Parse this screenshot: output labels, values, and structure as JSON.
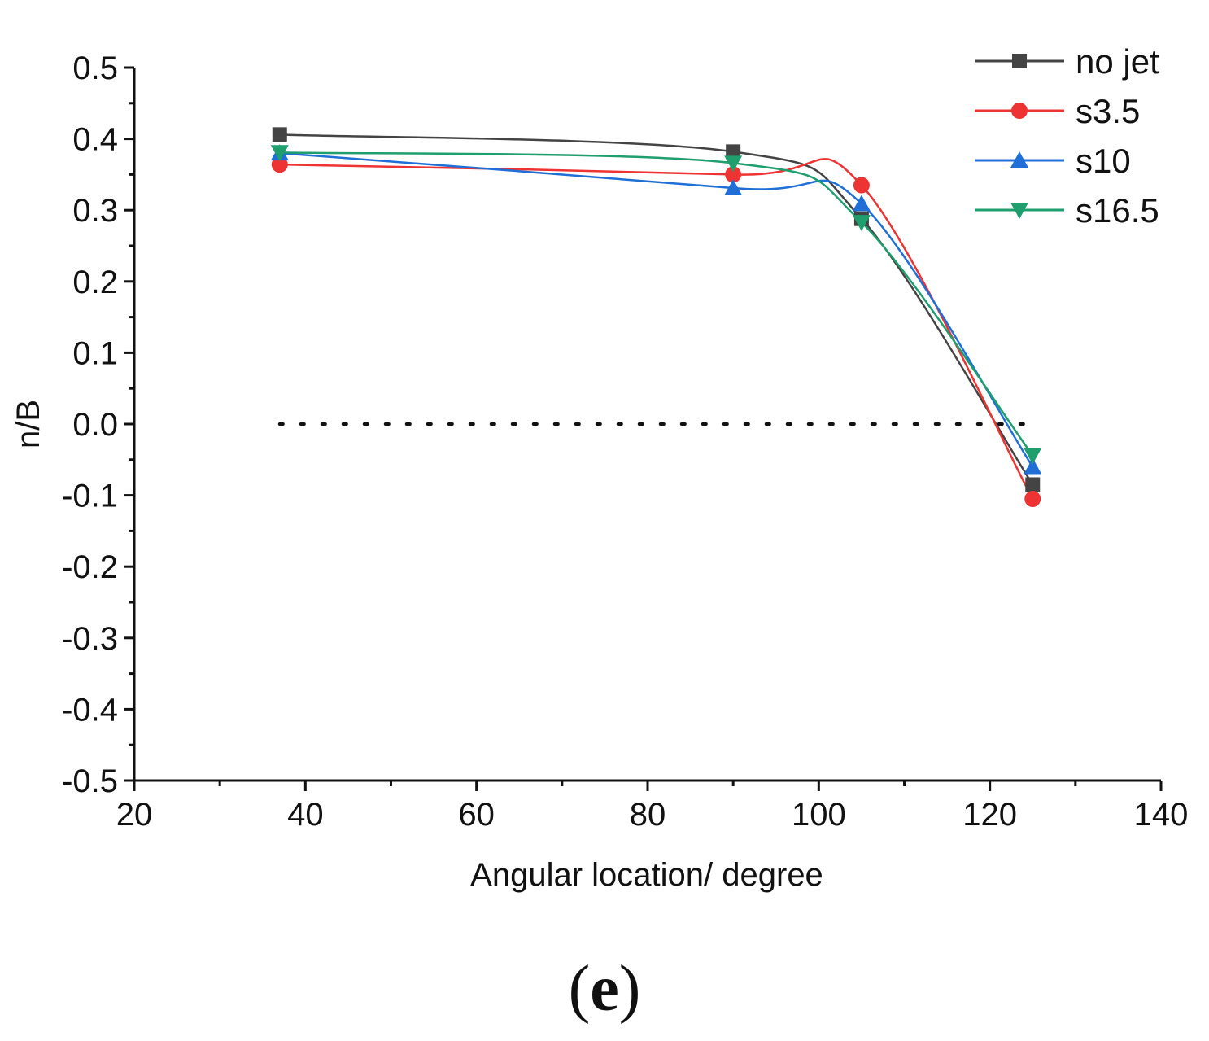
{
  "chart_data": {
    "type": "line",
    "title": "",
    "xlabel": "Angular location/ degree",
    "ylabel": "n/B",
    "xlim": [
      20,
      140
    ],
    "ylim": [
      -0.5,
      0.5
    ],
    "x_ticks": [
      "20",
      "40",
      "60",
      "80",
      "100",
      "120",
      "140"
    ],
    "y_ticks": [
      "-0.5",
      "-0.4",
      "-0.3",
      "-0.2",
      "-0.1",
      "0.0",
      "0.1",
      "0.2",
      "0.3",
      "0.4",
      "0.5"
    ],
    "x": [
      37,
      90,
      105,
      125
    ],
    "series": [
      {
        "name": "no jet",
        "values": [
          0.406,
          0.382,
          0.288,
          -0.085
        ],
        "color": "#444444",
        "marker": "square"
      },
      {
        "name": "s3.5",
        "values": [
          0.364,
          0.35,
          0.335,
          -0.105
        ],
        "color": "#ee3333",
        "marker": "circle"
      },
      {
        "name": "s10",
        "values": [
          0.38,
          0.331,
          0.309,
          -0.06
        ],
        "color": "#1f6fd6",
        "marker": "triangle-up"
      },
      {
        "name": "s16.5",
        "values": [
          0.381,
          0.366,
          0.283,
          -0.044
        ],
        "color": "#1f9e6e",
        "marker": "triangle-down"
      }
    ],
    "reference_line": {
      "y": 0.0,
      "x_range": [
        37,
        125
      ],
      "style": "dotted"
    },
    "legend_position": "top-right"
  },
  "panel_label": "(e)",
  "panel_label_letter": "e"
}
